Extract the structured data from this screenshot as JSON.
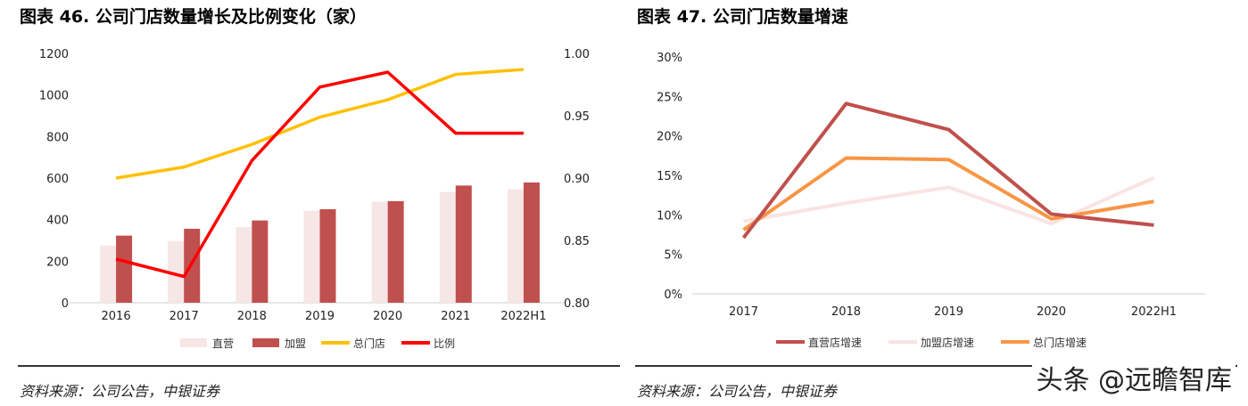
{
  "chart_data": [
    {
      "type": "bar+line",
      "title": "图表 46. 公司门店数量增长及比例变化（家）",
      "categories": [
        "2016",
        "2017",
        "2018",
        "2019",
        "2020",
        "2021",
        "2022H1"
      ],
      "ylim": [
        0,
        1200
      ],
      "yticks": [
        0,
        200,
        400,
        600,
        800,
        1000,
        1200
      ],
      "y2lim": [
        0.8,
        1.0
      ],
      "y2ticks": [
        "0.80",
        "0.85",
        "0.90",
        "0.95",
        "1.00"
      ],
      "legend_position": "bottom",
      "grid": false,
      "series": [
        {
          "name": "直营",
          "type": "bar",
          "axis": "left",
          "color": "#f7e6e6",
          "values": [
            275,
            297,
            364,
            443,
            486,
            533,
            546
          ]
        },
        {
          "name": "加盟",
          "type": "bar",
          "axis": "left",
          "color": "#c0504d",
          "values": [
            323,
            356,
            396,
            450,
            489,
            564,
            579
          ]
        },
        {
          "name": "总门店",
          "type": "line",
          "axis": "left",
          "color": "#ffc000",
          "values": [
            600,
            653,
            762,
            893,
            977,
            1099,
            1123
          ]
        },
        {
          "name": "比例",
          "type": "line",
          "axis": "right",
          "color": "#ff0000",
          "values": [
            0.835,
            0.821,
            0.914,
            0.973,
            0.985,
            0.936,
            0.936
          ]
        }
      ]
    },
    {
      "type": "line",
      "title": "图表 47. 公司门店数量增速",
      "categories": [
        "2017",
        "2018",
        "2019",
        "2020",
        "2022H1"
      ],
      "ylim": [
        0,
        30
      ],
      "yticks": [
        "0%",
        "5%",
        "10%",
        "15%",
        "20%",
        "25%",
        "30%"
      ],
      "legend_position": "bottom",
      "grid": false,
      "series": [
        {
          "name": "直营店增速",
          "color": "#c0504d",
          "values": [
            7.1,
            24.1,
            20.8,
            10.1,
            8.7
          ]
        },
        {
          "name": "加盟店增速",
          "color": "#f9e3e3",
          "values": [
            9.2,
            11.5,
            13.5,
            8.9,
            14.7
          ]
        },
        {
          "name": "总门店增速",
          "color": "#f79646",
          "values": [
            8.1,
            17.2,
            17.0,
            9.5,
            11.7
          ]
        }
      ]
    }
  ],
  "footer": {
    "source_left": "资料来源：公司公告，中银证券",
    "source_right": "资料来源：公司公告，中银证券",
    "watermark": "头条 @远瞻智库"
  }
}
